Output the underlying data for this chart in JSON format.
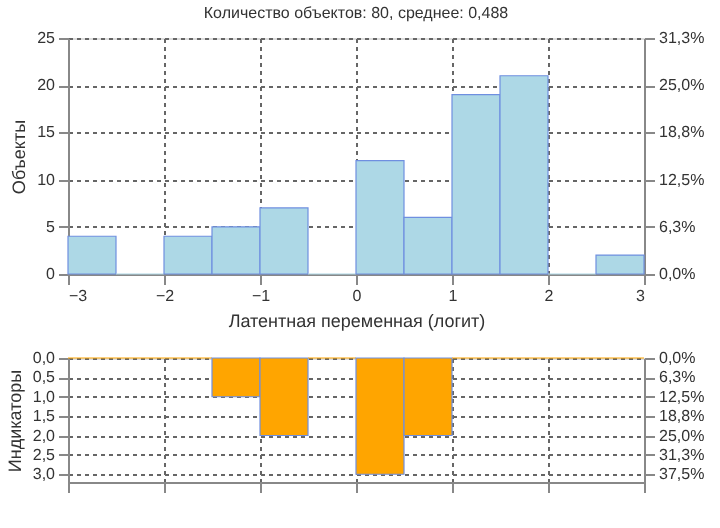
{
  "chart_data": [
    {
      "type": "histogram",
      "title": "Количество объектов: 80, среднее: 0,488",
      "xlabel": "Латентная переменная (логит)",
      "ylabel": "Объекты",
      "bins": [
        -3,
        -2.5,
        -2,
        -1.5,
        -1,
        -0.5,
        0,
        0.5,
        1,
        1.5,
        2,
        2.5,
        3
      ],
      "values": [
        4,
        0,
        4,
        5,
        7,
        0,
        12,
        6,
        19,
        21,
        0,
        2
      ],
      "color": "#add8e6",
      "xlim": [
        -3,
        3
      ],
      "xticks": [
        -3,
        -2,
        -1,
        0,
        1,
        2,
        3
      ],
      "ylim": [
        0,
        25
      ],
      "yticks": [
        0,
        5,
        10,
        15,
        20,
        25
      ],
      "y2lim": [
        0,
        31.25
      ],
      "y2ticks": [
        {
          "value": 0,
          "label": "0,0%"
        },
        {
          "value": 6.25,
          "label": "6,3%"
        },
        {
          "value": 12.5,
          "label": "12,5%"
        },
        {
          "value": 18.75,
          "label": "18,8%"
        },
        {
          "value": 25,
          "label": "25,0%"
        },
        {
          "value": 31.25,
          "label": "31,3%"
        }
      ],
      "grid": true
    },
    {
      "type": "histogram",
      "ylabel": "Индикаторы",
      "bins": [
        -3,
        -2.5,
        -2,
        -1.5,
        -1,
        -0.5,
        0,
        0.5,
        1,
        1.5,
        2,
        2.5,
        3
      ],
      "values": [
        0,
        0,
        0,
        1,
        2,
        0,
        3,
        2,
        0,
        0,
        0,
        0
      ],
      "color": "#ffa500",
      "xlim": [
        -3,
        3
      ],
      "xticks": [
        -3,
        -2,
        -1,
        0,
        1,
        2,
        3
      ],
      "ylim": [
        3.2,
        0
      ],
      "yticks": [
        {
          "value": 0,
          "label": "0,0"
        },
        {
          "value": 0.5,
          "label": "0,5"
        },
        {
          "value": 1,
          "label": "1,0"
        },
        {
          "value": 1.5,
          "label": "1,5"
        },
        {
          "value": 2,
          "label": "2,0"
        },
        {
          "value": 2.5,
          "label": "2,5"
        },
        {
          "value": 3,
          "label": "3,0"
        }
      ],
      "y2lim": [
        40,
        0
      ],
      "y2ticks": [
        {
          "value": 0,
          "label": "0,0%"
        },
        {
          "value": 6.25,
          "label": "6,3%"
        },
        {
          "value": 12.5,
          "label": "12,5%"
        },
        {
          "value": 18.75,
          "label": "18,8%"
        },
        {
          "value": 25,
          "label": "25,0%"
        },
        {
          "value": 31.25,
          "label": "31,3%"
        },
        {
          "value": 37.5,
          "label": "37,5%"
        }
      ],
      "grid": true,
      "tick_labels": "y"
    }
  ]
}
